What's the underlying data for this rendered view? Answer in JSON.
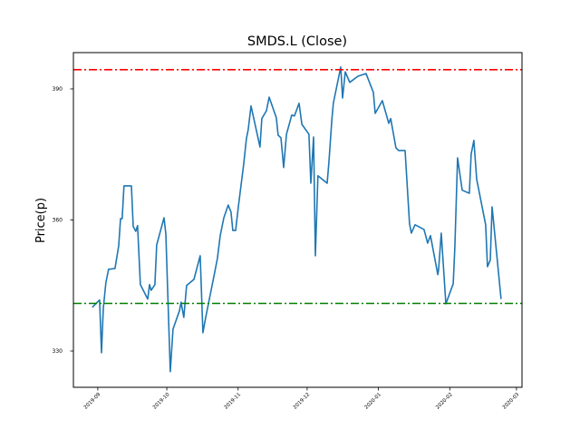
{
  "chart_data": {
    "type": "line",
    "title": "SMDS.L (Close)",
    "xlabel": "",
    "ylabel": "Price(p)",
    "x_unit": "days since 2019-09-01",
    "xlim": [
      -10.6,
      184.4
    ],
    "ylim": [
      321.7,
      398.3
    ],
    "grid": false,
    "x_ticks": [
      {
        "value": 0,
        "label": "2019-09"
      },
      {
        "value": 30,
        "label": "2019-10"
      },
      {
        "value": 61,
        "label": "2019-11"
      },
      {
        "value": 91,
        "label": "2019-12"
      },
      {
        "value": 122,
        "label": "2020-01"
      },
      {
        "value": 153,
        "label": "2020-02"
      },
      {
        "value": 182,
        "label": "2020-03"
      }
    ],
    "y_ticks": [
      {
        "value": 390,
        "label": "390"
      },
      {
        "value": 360,
        "label": "360"
      },
      {
        "value": 330,
        "label": "330"
      }
    ],
    "series": [
      {
        "name": "Close",
        "color": "#1f77b4",
        "x": [
          -2.4,
          0.8,
          1.6,
          2.4,
          3.5,
          4.7,
          7.5,
          9.1,
          9.9,
          10.6,
          11.4,
          14.6,
          15.4,
          16.5,
          17.3,
          18.5,
          21.7,
          22.5,
          23.2,
          24.8,
          25.6,
          28.8,
          29.6,
          31.5,
          32.7,
          35.5,
          36.2,
          37.4,
          38.6,
          41.8,
          44.5,
          45.7,
          46.9,
          48.9,
          50.8,
          52.0,
          53.2,
          54.8,
          56.7,
          57.9,
          58.7,
          59.9,
          61.1,
          63.4,
          64.6,
          65.4,
          66.6,
          70.5,
          71.3,
          73.3,
          74.5,
          77.6,
          78.4,
          79.6,
          80.8,
          82.0,
          84.3,
          85.5,
          87.5,
          88.7,
          91.8,
          92.6,
          93.8,
          94.6,
          95.7,
          99.7,
          100.5,
          101.7,
          102.4,
          105.6,
          106.4,
          107.6,
          109.5,
          113.1,
          116.6,
          119.8,
          120.6,
          123.7,
          126.5,
          127.3,
          129.6,
          130.8,
          133.6,
          135.5,
          136.3,
          137.9,
          141.8,
          143.4,
          144.6,
          147.8,
          148.1,
          149.3,
          151.3,
          154.5,
          155.2,
          156.4,
          158.4,
          161.5,
          162.3,
          163.5,
          164.7,
          168.6,
          169.4,
          170.6,
          171.4,
          175.3
        ],
        "y": [
          340.0,
          341.7,
          329.6,
          339.8,
          345.6,
          348.7,
          348.9,
          354.1,
          360.3,
          360.3,
          367.8,
          367.8,
          358.5,
          357.4,
          358.7,
          345.2,
          341.9,
          345.2,
          343.9,
          345.2,
          354.3,
          360.5,
          356.8,
          325.3,
          335.0,
          339.2,
          341.2,
          337.7,
          345.0,
          346.4,
          351.8,
          334.2,
          337.7,
          342.9,
          348.0,
          351.2,
          356.4,
          360.5,
          363.4,
          361.8,
          357.6,
          357.6,
          363.0,
          372.6,
          378.6,
          380.7,
          386.1,
          376.7,
          383.2,
          385.0,
          388.1,
          383.4,
          379.4,
          378.8,
          372.0,
          379.6,
          384.0,
          383.8,
          386.7,
          381.9,
          379.6,
          368.4,
          379.0,
          351.8,
          370.1,
          368.4,
          373.4,
          382.7,
          386.7,
          395.0,
          387.9,
          393.9,
          391.5,
          392.9,
          393.5,
          389.2,
          384.4,
          387.3,
          382.1,
          383.2,
          376.5,
          375.9,
          375.9,
          359.1,
          357.0,
          358.9,
          357.8,
          354.7,
          356.4,
          347.5,
          348.5,
          357.0,
          340.8,
          345.4,
          353.7,
          374.2,
          366.8,
          366.1,
          375.1,
          378.2,
          369.3,
          358.9,
          349.3,
          350.8,
          363.0,
          341.9
        ]
      }
    ],
    "hlines": [
      {
        "name": "max-line",
        "value": 394.4,
        "color": "#ff0000",
        "style": "dashdot"
      },
      {
        "name": "min-line",
        "value": 340.9,
        "color": "#008000",
        "style": "dashdot"
      }
    ]
  }
}
